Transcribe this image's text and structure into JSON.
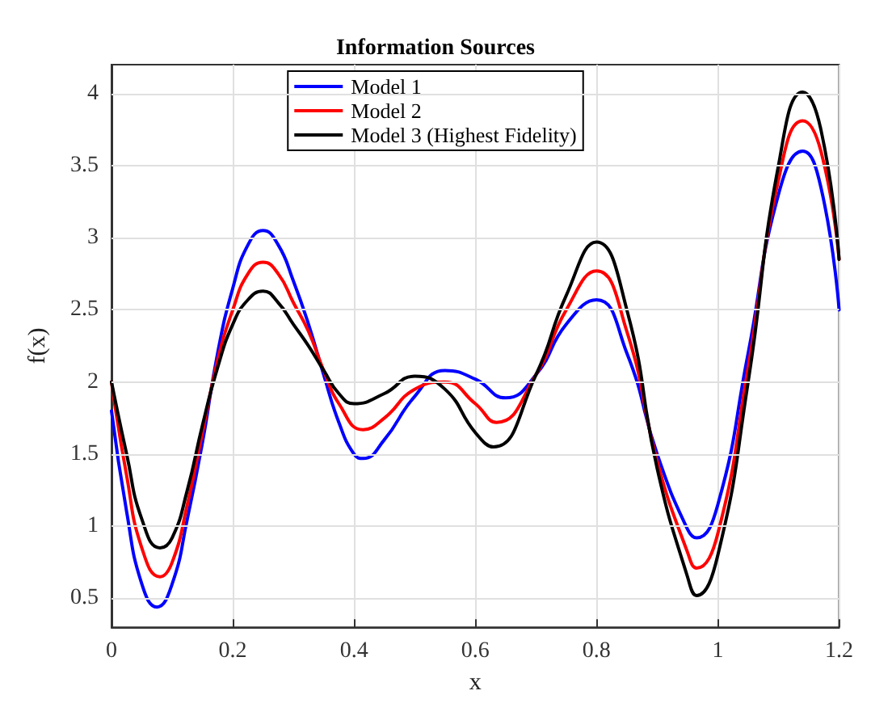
{
  "chart_data": {
    "type": "line",
    "title": "Information Sources",
    "xlabel": "x",
    "ylabel": "f(x)",
    "xlim": [
      0,
      1.2
    ],
    "xticks": [
      0,
      0.2,
      0.4,
      0.6,
      0.8,
      1,
      1.2
    ],
    "ylim": [
      0.3,
      4.2
    ],
    "yticks": [
      0.5,
      1,
      1.5,
      2,
      2.5,
      3,
      3.5,
      4
    ],
    "grid": true,
    "legend": "top",
    "marker": "none",
    "line_style": "solid",
    "series": [
      {
        "name": "Model 1",
        "color": "#0000ff",
        "x": [
          0,
          0.025,
          0.05,
          0.075,
          0.1,
          0.125,
          0.15,
          0.175,
          0.2,
          0.225,
          0.25,
          0.275,
          0.3,
          0.325,
          0.35,
          0.375,
          0.4,
          0.415,
          0.45,
          0.5,
          0.55,
          0.6,
          0.65,
          0.7,
          0.75,
          0.8,
          0.85,
          0.9,
          0.95,
          0.965,
          1.0,
          1.05,
          1.1,
          1.14,
          1.17,
          1.2
        ],
        "values": [
          1.8,
          1.1,
          0.6,
          0.44,
          0.6,
          1.05,
          1.58,
          2.2,
          2.65,
          2.95,
          3.05,
          2.95,
          2.7,
          2.4,
          2.05,
          1.72,
          1.5,
          1.47,
          1.6,
          1.9,
          2.08,
          2.02,
          1.89,
          2.05,
          2.4,
          2.57,
          2.2,
          1.5,
          0.98,
          0.92,
          1.15,
          2.2,
          3.3,
          3.6,
          3.35,
          2.5
        ]
      },
      {
        "name": "Model 2",
        "color": "#ff0000",
        "x": [
          0,
          0.025,
          0.05,
          0.08,
          0.1,
          0.125,
          0.15,
          0.175,
          0.2,
          0.225,
          0.25,
          0.275,
          0.3,
          0.325,
          0.35,
          0.375,
          0.415,
          0.45,
          0.5,
          0.55,
          0.6,
          0.635,
          0.7,
          0.75,
          0.8,
          0.85,
          0.9,
          0.95,
          0.965,
          1.0,
          1.05,
          1.1,
          1.14,
          1.17,
          1.2
        ],
        "values": [
          2.0,
          1.35,
          0.85,
          0.65,
          0.75,
          1.15,
          1.65,
          2.15,
          2.5,
          2.75,
          2.83,
          2.75,
          2.55,
          2.35,
          2.08,
          1.85,
          1.67,
          1.75,
          1.95,
          2.0,
          1.85,
          1.72,
          2.05,
          2.5,
          2.77,
          2.35,
          1.45,
          0.82,
          0.71,
          0.95,
          2.1,
          3.4,
          3.81,
          3.6,
          2.85
        ]
      },
      {
        "name": "Model 3 (Highest Fidelity)",
        "color": "#000000",
        "x": [
          0,
          0.025,
          0.05,
          0.08,
          0.1,
          0.125,
          0.15,
          0.175,
          0.2,
          0.225,
          0.25,
          0.275,
          0.3,
          0.325,
          0.35,
          0.375,
          0.4,
          0.45,
          0.5,
          0.55,
          0.6,
          0.63,
          0.7,
          0.75,
          0.8,
          0.85,
          0.9,
          0.95,
          0.965,
          1.0,
          1.05,
          1.1,
          1.14,
          1.17,
          1.2
        ],
        "values": [
          2.0,
          1.5,
          1.05,
          0.85,
          0.92,
          1.25,
          1.7,
          2.1,
          2.4,
          2.57,
          2.63,
          2.55,
          2.4,
          2.25,
          2.08,
          1.92,
          1.85,
          1.92,
          2.04,
          1.95,
          1.65,
          1.55,
          2.05,
          2.6,
          2.97,
          2.5,
          1.4,
          0.65,
          0.52,
          0.8,
          2.0,
          3.5,
          4.01,
          3.75,
          2.85
        ]
      }
    ]
  }
}
